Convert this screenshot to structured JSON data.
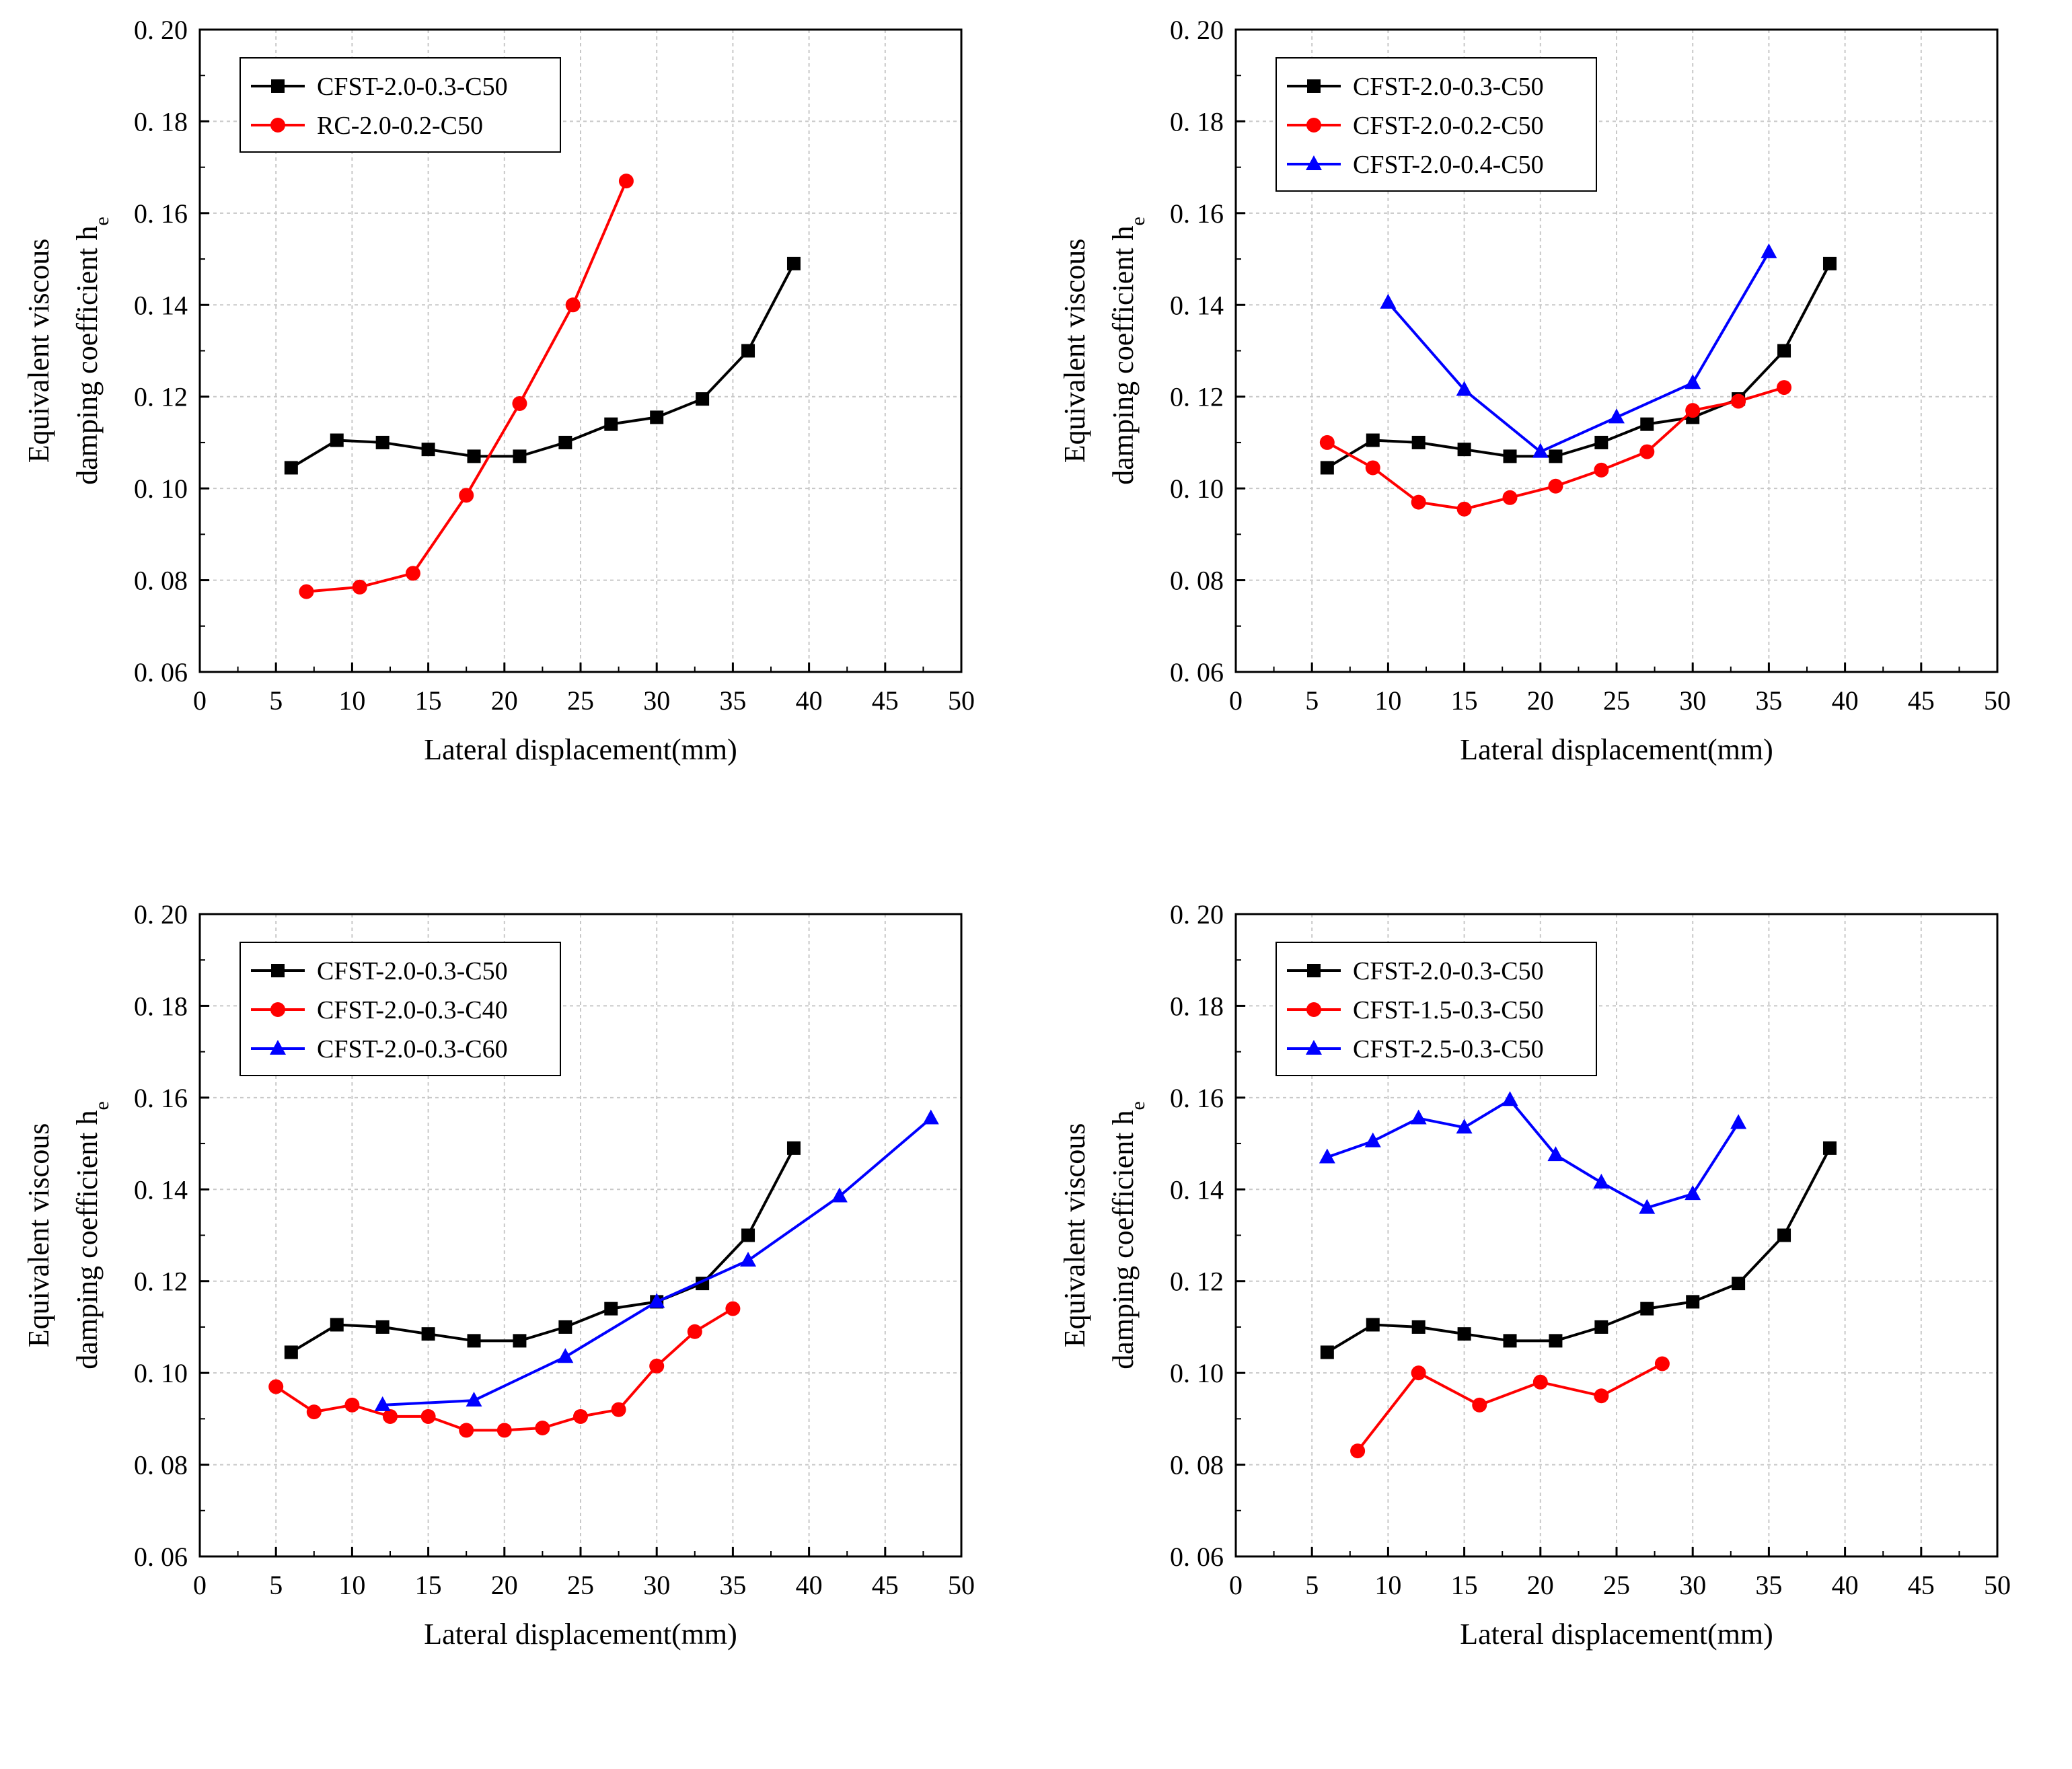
{
  "chart_data": [
    {
      "type": "line",
      "xlabel": "Lateral displacement(mm)",
      "ylabel_line1": "Equivalent viscous",
      "ylabel_line2": "damping coefficient h",
      "ylabel_sub": "e",
      "xlim": [
        0,
        50
      ],
      "ylim": [
        0.06,
        0.2
      ],
      "xticks": [
        "0",
        "5",
        "10",
        "15",
        "20",
        "25",
        "30",
        "35",
        "40",
        "45",
        "50"
      ],
      "yticks": [
        "0. 06",
        "0. 08",
        "0. 10",
        "0. 12",
        "0. 14",
        "0. 16",
        "0. 18",
        "0. 20"
      ],
      "legend_position": "top-left",
      "series": [
        {
          "name": "CFST-2.0-0.3-C50",
          "color": "#000000",
          "marker": "square",
          "x": [
            6,
            9,
            12,
            15,
            18,
            21,
            24,
            27,
            30,
            33,
            36,
            39
          ],
          "y": [
            0.1045,
            0.1105,
            0.11,
            0.1085,
            0.107,
            0.107,
            0.11,
            0.114,
            0.1155,
            0.1195,
            0.13,
            0.149
          ]
        },
        {
          "name": "RC-2.0-0.2-C50",
          "color": "#ff0000",
          "marker": "circle",
          "x": [
            7,
            10.5,
            14,
            17.5,
            21,
            24.5,
            28
          ],
          "y": [
            0.0775,
            0.0785,
            0.0815,
            0.0985,
            0.1185,
            0.14,
            0.167
          ]
        }
      ]
    },
    {
      "type": "line",
      "xlabel": "Lateral displacement(mm)",
      "ylabel_line1": "Equivalent viscous",
      "ylabel_line2": "damping coefficient h",
      "ylabel_sub": "e",
      "xlim": [
        0,
        50
      ],
      "ylim": [
        0.06,
        0.2
      ],
      "xticks": [
        "0",
        "5",
        "10",
        "15",
        "20",
        "25",
        "30",
        "35",
        "40",
        "45",
        "50"
      ],
      "yticks": [
        "0. 06",
        "0. 08",
        "0. 10",
        "0. 12",
        "0. 14",
        "0. 16",
        "0. 18",
        "0. 20"
      ],
      "legend_position": "top-left",
      "series": [
        {
          "name": "CFST-2.0-0.3-C50",
          "color": "#000000",
          "marker": "square",
          "x": [
            6,
            9,
            12,
            15,
            18,
            21,
            24,
            27,
            30,
            33,
            36,
            39
          ],
          "y": [
            0.1045,
            0.1105,
            0.11,
            0.1085,
            0.107,
            0.107,
            0.11,
            0.114,
            0.1155,
            0.1195,
            0.13,
            0.149
          ]
        },
        {
          "name": "CFST-2.0-0.2-C50",
          "color": "#ff0000",
          "marker": "circle",
          "x": [
            6,
            9,
            12,
            15,
            18,
            21,
            24,
            27,
            30,
            33,
            36
          ],
          "y": [
            0.11,
            0.1045,
            0.097,
            0.0955,
            0.098,
            0.1005,
            0.104,
            0.108,
            0.117,
            0.119,
            0.122
          ]
        },
        {
          "name": "CFST-2.0-0.4-C50",
          "color": "#0000ff",
          "marker": "triangle",
          "x": [
            10,
            15,
            20,
            25,
            30,
            35
          ],
          "y": [
            0.1405,
            0.1215,
            0.108,
            0.1155,
            0.123,
            0.1515
          ]
        }
      ]
    },
    {
      "type": "line",
      "xlabel": "Lateral displacement(mm)",
      "ylabel_line1": "Equivalent viscous",
      "ylabel_line2": "damping coefficient h",
      "ylabel_sub": "e",
      "xlim": [
        0,
        50
      ],
      "ylim": [
        0.06,
        0.2
      ],
      "xticks": [
        "0",
        "5",
        "10",
        "15",
        "20",
        "25",
        "30",
        "35",
        "40",
        "45",
        "50"
      ],
      "yticks": [
        "0. 06",
        "0. 08",
        "0. 10",
        "0. 12",
        "0. 14",
        "0. 16",
        "0. 18",
        "0. 20"
      ],
      "legend_position": "top-left",
      "series": [
        {
          "name": "CFST-2.0-0.3-C50",
          "color": "#000000",
          "marker": "square",
          "x": [
            6,
            9,
            12,
            15,
            18,
            21,
            24,
            27,
            30,
            33,
            36,
            39
          ],
          "y": [
            0.1045,
            0.1105,
            0.11,
            0.1085,
            0.107,
            0.107,
            0.11,
            0.114,
            0.1155,
            0.1195,
            0.13,
            0.149
          ]
        },
        {
          "name": "CFST-2.0-0.3-C40",
          "color": "#ff0000",
          "marker": "circle",
          "x": [
            5,
            7.5,
            10,
            12.5,
            15,
            17.5,
            20,
            22.5,
            25,
            27.5,
            30,
            32.5,
            35
          ],
          "y": [
            0.097,
            0.0915,
            0.093,
            0.0905,
            0.0905,
            0.0875,
            0.0875,
            0.088,
            0.0905,
            0.092,
            0.1015,
            0.109,
            0.114
          ]
        },
        {
          "name": "CFST-2.0-0.3-C60",
          "color": "#0000ff",
          "marker": "triangle",
          "x": [
            12,
            18,
            24,
            30,
            36,
            42,
            48
          ],
          "y": [
            0.093,
            0.094,
            0.1035,
            0.1155,
            0.1245,
            0.1385,
            0.1555
          ]
        }
      ]
    },
    {
      "type": "line",
      "xlabel": "Lateral displacement(mm)",
      "ylabel_line1": "Equivalent viscous",
      "ylabel_line2": "damping coefficient h",
      "ylabel_sub": "e",
      "xlim": [
        0,
        50
      ],
      "ylim": [
        0.06,
        0.2
      ],
      "xticks": [
        "0",
        "5",
        "10",
        "15",
        "20",
        "25",
        "30",
        "35",
        "40",
        "45",
        "50"
      ],
      "yticks": [
        "0. 06",
        "0. 08",
        "0. 10",
        "0. 12",
        "0. 14",
        "0. 16",
        "0. 18",
        "0. 20"
      ],
      "legend_position": "top-left",
      "series": [
        {
          "name": "CFST-2.0-0.3-C50",
          "color": "#000000",
          "marker": "square",
          "x": [
            6,
            9,
            12,
            15,
            18,
            21,
            24,
            27,
            30,
            33,
            36,
            39
          ],
          "y": [
            0.1045,
            0.1105,
            0.11,
            0.1085,
            0.107,
            0.107,
            0.11,
            0.114,
            0.1155,
            0.1195,
            0.13,
            0.149
          ]
        },
        {
          "name": "CFST-1.5-0.3-C50",
          "color": "#ff0000",
          "marker": "circle",
          "x": [
            8,
            12,
            16,
            20,
            24,
            28
          ],
          "y": [
            0.083,
            0.1,
            0.093,
            0.098,
            0.095,
            0.102
          ]
        },
        {
          "name": "CFST-2.5-0.3-C50",
          "color": "#0000ff",
          "marker": "triangle",
          "x": [
            6,
            9,
            12,
            15,
            18,
            21,
            24,
            27,
            30,
            33
          ],
          "y": [
            0.147,
            0.1505,
            0.1555,
            0.1535,
            0.1595,
            0.1475,
            0.1415,
            0.136,
            0.139,
            0.1545
          ]
        }
      ]
    }
  ]
}
